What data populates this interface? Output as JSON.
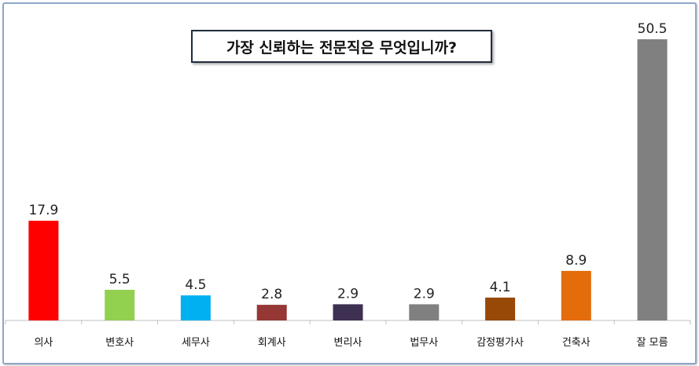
{
  "chart_data": {
    "type": "bar",
    "title": "가장 신뢰하는 전문직은 무엇입니까?",
    "categories": [
      "의사",
      "변호사",
      "세무사",
      "회계사",
      "변리사",
      "법무사",
      "감정평가사",
      "건축사",
      "잘 모름"
    ],
    "values": [
      17.9,
      5.5,
      4.5,
      2.8,
      2.9,
      2.9,
      4.1,
      8.9,
      50.5
    ],
    "value_labels": [
      "17.9",
      "5.5",
      "4.5",
      "2.8",
      "2.9",
      "2.9",
      "4.1",
      "8.9",
      "50.5"
    ],
    "colors": [
      "#ff0000",
      "#92d050",
      "#00b0f0",
      "#953735",
      "#3d3050",
      "#808080",
      "#984807",
      "#e46c0a",
      "#808080"
    ],
    "ylim": [
      0,
      51.2
    ],
    "grid": false,
    "legend": "none"
  }
}
